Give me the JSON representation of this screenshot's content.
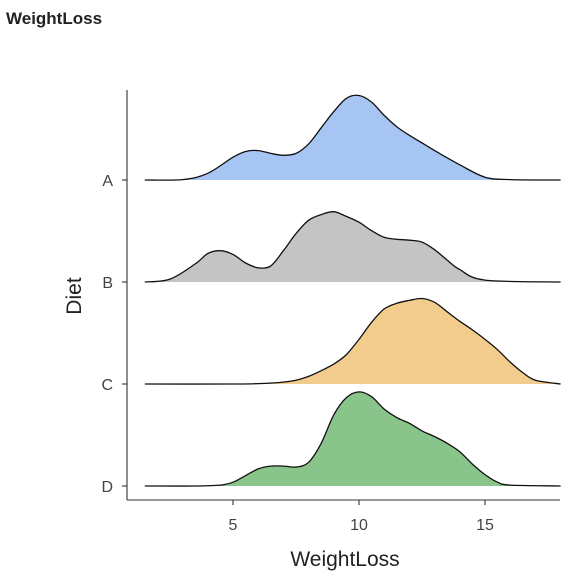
{
  "page": {
    "title": "WeightLoss"
  },
  "chart_data": {
    "type": "ridgeline",
    "xlabel": "WeightLoss",
    "ylabel": "Diet",
    "xlim": [
      1,
      18
    ],
    "x_ticks": [
      5,
      10,
      15
    ],
    "categories": [
      "A",
      "B",
      "C",
      "D"
    ],
    "series": [
      {
        "name": "A",
        "color": "#a6c5f3",
        "x": [
          1.5,
          3,
          4,
          5,
          5.5,
          6,
          6.5,
          7,
          7.5,
          8,
          8.5,
          9,
          9.5,
          10,
          10.5,
          11,
          11.5,
          12,
          12.5,
          13,
          14,
          15,
          16,
          18
        ],
        "density": [
          0,
          0.004,
          0.07,
          0.24,
          0.3,
          0.31,
          0.28,
          0.26,
          0.28,
          0.38,
          0.55,
          0.72,
          0.86,
          0.89,
          0.82,
          0.68,
          0.56,
          0.47,
          0.39,
          0.31,
          0.16,
          0.03,
          0.004,
          0
        ]
      },
      {
        "name": "B",
        "color": "#c4c4c4",
        "x": [
          1.5,
          2.5,
          3.5,
          4,
          4.5,
          5,
          5.5,
          6,
          6.5,
          7,
          7.5,
          8,
          8.5,
          9,
          9.5,
          10,
          10.5,
          11,
          11.5,
          12,
          12.5,
          13,
          13.5,
          14,
          15,
          18
        ],
        "density": [
          0,
          0.03,
          0.19,
          0.3,
          0.33,
          0.29,
          0.2,
          0.15,
          0.17,
          0.33,
          0.51,
          0.65,
          0.71,
          0.74,
          0.69,
          0.63,
          0.54,
          0.47,
          0.45,
          0.44,
          0.42,
          0.34,
          0.23,
          0.13,
          0.02,
          0
        ]
      },
      {
        "name": "C",
        "color": "#f1cc8c",
        "x": [
          1.5,
          5,
          6,
          7,
          7.5,
          8,
          8.5,
          9,
          9.5,
          10,
          10.5,
          11,
          11.5,
          12,
          12.5,
          13,
          13.5,
          14,
          14.5,
          15,
          15.5,
          16,
          16.5,
          17,
          18
        ],
        "density": [
          0,
          0,
          0.004,
          0.02,
          0.04,
          0.08,
          0.14,
          0.21,
          0.31,
          0.47,
          0.65,
          0.79,
          0.85,
          0.88,
          0.9,
          0.86,
          0.76,
          0.66,
          0.57,
          0.47,
          0.36,
          0.23,
          0.12,
          0.04,
          0
        ]
      },
      {
        "name": "D",
        "color": "#89c48a",
        "x": [
          1.5,
          3.5,
          4.5,
          5,
          5.5,
          6,
          6.5,
          7,
          7.5,
          8,
          8.5,
          9,
          9.5,
          10,
          10.5,
          11,
          11.5,
          12,
          12.5,
          13,
          13.5,
          14,
          14.5,
          15,
          15.5,
          16,
          18
        ],
        "density": [
          0,
          0,
          0.01,
          0.04,
          0.11,
          0.18,
          0.21,
          0.21,
          0.2,
          0.25,
          0.45,
          0.75,
          0.93,
          0.99,
          0.94,
          0.81,
          0.72,
          0.66,
          0.58,
          0.52,
          0.45,
          0.36,
          0.23,
          0.12,
          0.04,
          0.01,
          0
        ]
      }
    ],
    "grid": false,
    "legend": "none"
  }
}
